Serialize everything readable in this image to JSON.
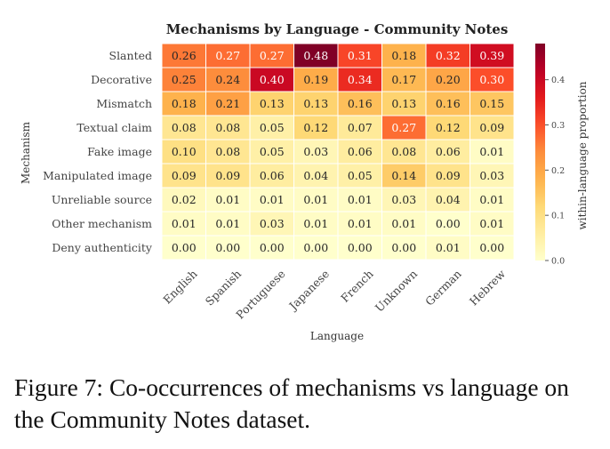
{
  "caption": "Figure 7: Co-occurrences of mechanisms vs language on the Community Notes dataset.",
  "chart_data": {
    "type": "heatmap",
    "title": "Mechanisms by Language - Community Notes",
    "xlabel": "Language",
    "ylabel": "Mechanism",
    "colorbar_label": "within-language proportion",
    "colormap": "YlOrRd",
    "vmin": 0.0,
    "vmax": 0.48,
    "colorbar_ticks": [
      0.0,
      0.1,
      0.2,
      0.3,
      0.4
    ],
    "colorbar_tick_labels": [
      "0.0",
      "0.1",
      "0.2",
      "0.3",
      "0.4"
    ],
    "x_categories": [
      "English",
      "Spanish",
      "Portuguese",
      "Japanese",
      "French",
      "Unknown",
      "German",
      "Hebrew"
    ],
    "y_categories": [
      "Slanted",
      "Decorative",
      "Mismatch",
      "Textual claim",
      "Fake image",
      "Manipulated image",
      "Unreliable source",
      "Other mechanism",
      "Deny authenticity"
    ],
    "values": [
      [
        0.26,
        0.27,
        0.27,
        0.48,
        0.31,
        0.18,
        0.32,
        0.39
      ],
      [
        0.25,
        0.24,
        0.4,
        0.19,
        0.34,
        0.17,
        0.2,
        0.3
      ],
      [
        0.18,
        0.21,
        0.13,
        0.13,
        0.16,
        0.13,
        0.16,
        0.15
      ],
      [
        0.08,
        0.08,
        0.05,
        0.12,
        0.07,
        0.27,
        0.12,
        0.09
      ],
      [
        0.1,
        0.08,
        0.05,
        0.03,
        0.06,
        0.08,
        0.06,
        0.01
      ],
      [
        0.09,
        0.09,
        0.06,
        0.04,
        0.05,
        0.14,
        0.09,
        0.03
      ],
      [
        0.02,
        0.01,
        0.01,
        0.01,
        0.01,
        0.03,
        0.04,
        0.01
      ],
      [
        0.01,
        0.01,
        0.03,
        0.01,
        0.01,
        0.01,
        0.0,
        0.01
      ],
      [
        0.0,
        0.0,
        0.0,
        0.0,
        0.0,
        0.0,
        0.01,
        0.0
      ]
    ],
    "value_labels": [
      [
        "0.26",
        "0.27",
        "0.27",
        "0.48",
        "0.31",
        "0.18",
        "0.32",
        "0.39"
      ],
      [
        "0.25",
        "0.24",
        "0.40",
        "0.19",
        "0.34",
        "0.17",
        "0.20",
        "0.30"
      ],
      [
        "0.18",
        "0.21",
        "0.13",
        "0.13",
        "0.16",
        "0.13",
        "0.16",
        "0.15"
      ],
      [
        "0.08",
        "0.08",
        "0.05",
        "0.12",
        "0.07",
        "0.27",
        "0.12",
        "0.09"
      ],
      [
        "0.10",
        "0.08",
        "0.05",
        "0.03",
        "0.06",
        "0.08",
        "0.06",
        "0.01"
      ],
      [
        "0.09",
        "0.09",
        "0.06",
        "0.04",
        "0.05",
        "0.14",
        "0.09",
        "0.03"
      ],
      [
        "0.02",
        "0.01",
        "0.01",
        "0.01",
        "0.01",
        "0.03",
        "0.04",
        "0.01"
      ],
      [
        "0.01",
        "0.01",
        "0.03",
        "0.01",
        "0.01",
        "0.01",
        "0.00",
        "0.01"
      ],
      [
        "0.00",
        "0.00",
        "0.00",
        "0.00",
        "0.00",
        "0.00",
        "0.01",
        "0.00"
      ]
    ]
  }
}
